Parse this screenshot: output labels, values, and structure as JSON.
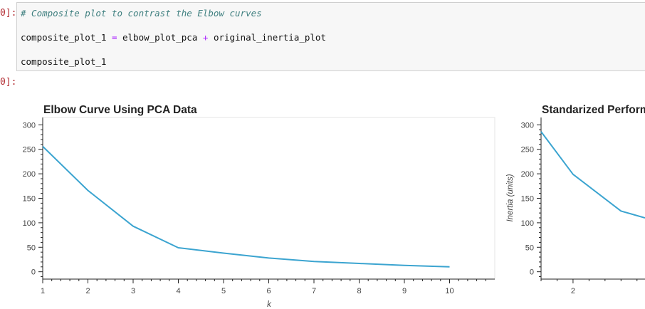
{
  "notebook": {
    "input_prompt": "0]:",
    "output_prompt": "0]:",
    "code": {
      "line1": "# Composite plot to contrast the Elbow curves",
      "line2_a": "composite_plot_1 ",
      "line2_op1": "=",
      "line2_b": " elbow_plot_pca ",
      "line2_op2": "+",
      "line2_c": " original_inertia_plot",
      "line3": "composite_plot_1"
    }
  },
  "chart_data": [
    {
      "type": "line",
      "title": "Elbow Curve Using PCA Data",
      "xlabel": "k",
      "ylabel": "",
      "x": [
        1,
        2,
        3,
        4,
        5,
        6,
        7,
        8,
        9,
        10
      ],
      "series": [
        {
          "values": [
            256,
            166,
            93,
            49,
            38,
            28,
            21,
            17,
            13,
            10
          ],
          "color": "#3ba4d0"
        }
      ],
      "xticks": [
        1,
        2,
        3,
        4,
        5,
        6,
        7,
        8,
        9,
        10
      ],
      "yticks": [
        0,
        50,
        100,
        150,
        200,
        250,
        300
      ],
      "xlim": [
        1,
        11
      ],
      "ylim": [
        -15,
        315
      ]
    },
    {
      "type": "line",
      "title": "Standarized Perform",
      "xlabel": "",
      "ylabel": "Inertia (units)",
      "x": [
        1.6,
        2,
        2.6,
        2.9
      ],
      "series": [
        {
          "values": [
            286,
            199,
            124,
            110
          ],
          "color": "#3ba4d0"
        }
      ],
      "xticks": [
        2
      ],
      "yticks": [
        0,
        50,
        100,
        150,
        200,
        250,
        300
      ],
      "xlim": [
        1.6,
        2.9
      ],
      "ylim": [
        -15,
        315
      ]
    }
  ]
}
